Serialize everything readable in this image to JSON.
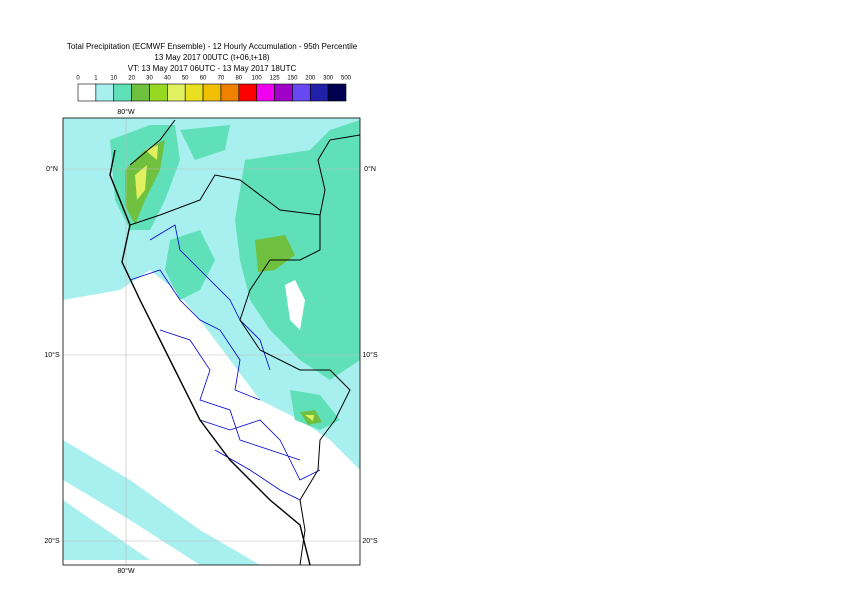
{
  "header": {
    "lines": [
      "Total Precipitation (ECMWF Ensemble) - 12 Hourly Accumulation - 95th Percentile",
      "13 May 2017 00UTC (t+06,t+18)",
      "VT: 13 May 2017 06UTC - 13 May 2017 18UTC"
    ]
  },
  "legend": {
    "labels": [
      0,
      1,
      10,
      20,
      30,
      40,
      50,
      60,
      70,
      80,
      100,
      125,
      150,
      200,
      300,
      500
    ],
    "colors": [
      "#ffffff",
      "#a8f0f0",
      "#60e0b8",
      "#70c040",
      "#98d820",
      "#e0f060",
      "#e8e020",
      "#f0c000",
      "#f08000",
      "#ff0000",
      "#f000f0",
      "#a000c8",
      "#6848f0",
      "#2020a8",
      "#000050"
    ]
  },
  "map": {
    "lat_labels": [
      "0°N",
      "10°S",
      "20°S"
    ],
    "lon_labels": [
      "80°W"
    ]
  }
}
